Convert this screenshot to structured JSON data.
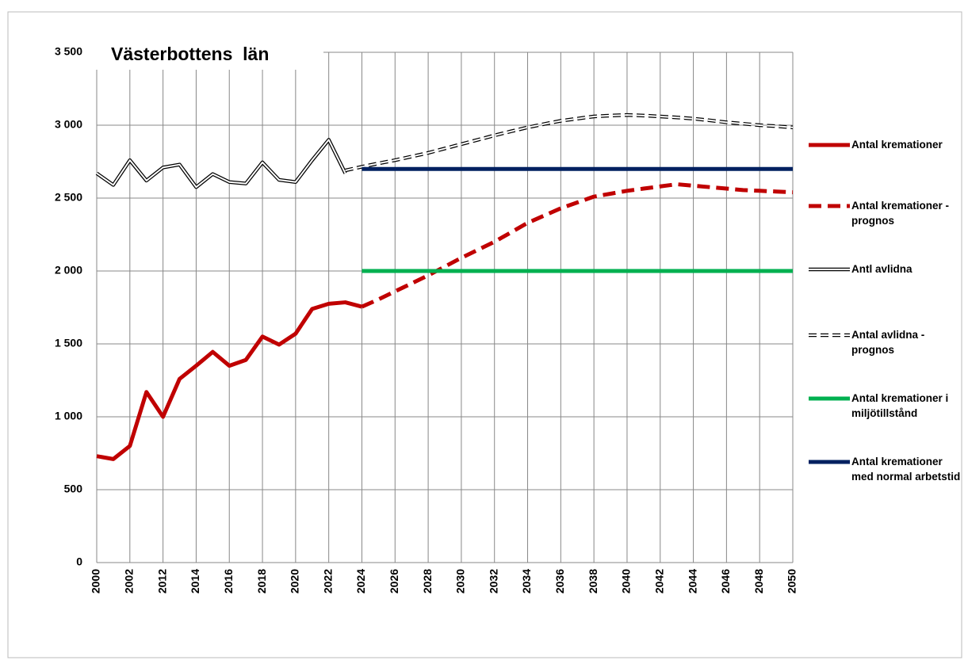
{
  "chart_data": {
    "type": "line",
    "title": "Västerbottens  län",
    "categories": [
      2000,
      null,
      2002,
      null,
      2012,
      null,
      2014,
      null,
      2016,
      null,
      2018,
      null,
      2020,
      null,
      2022,
      null,
      2024,
      null,
      2026,
      null,
      2028,
      null,
      2030,
      null,
      2032,
      null,
      2034,
      null,
      2036,
      null,
      2038,
      null,
      2040,
      null,
      2042,
      null,
      2044,
      null,
      2046,
      null,
      2048,
      null,
      2050
    ],
    "ylim": [
      0,
      3500
    ],
    "yticks": [
      {
        "value": 0,
        "label": "0"
      },
      {
        "value": 500,
        "label": "500"
      },
      {
        "value": 1000,
        "label": "1 000"
      },
      {
        "value": 1500,
        "label": "1 500"
      },
      {
        "value": 2000,
        "label": "2 000"
      },
      {
        "value": 2500,
        "label": "2 500"
      },
      {
        "value": 3000,
        "label": "3 000"
      },
      {
        "value": 3500,
        "label": "3 500"
      }
    ],
    "grid": true,
    "legend": "right",
    "series": [
      {
        "name": "Antal kremationer",
        "color": "#c00000",
        "style": "solid",
        "values": [
          730,
          710,
          800,
          1170,
          1000,
          1260,
          1350,
          1445,
          1350,
          1390,
          1550,
          1495,
          1570,
          1740,
          1775,
          1785,
          1755,
          null,
          null,
          null,
          null,
          null,
          null,
          null,
          null,
          null,
          null,
          null,
          null,
          null,
          null,
          null,
          null,
          null,
          null,
          null,
          null,
          null,
          null,
          null,
          null,
          null,
          null
        ]
      },
      {
        "name": "Antal kremationer - prognos",
        "color": "#c00000",
        "style": "dashed",
        "values": [
          null,
          null,
          null,
          null,
          null,
          null,
          null,
          null,
          null,
          null,
          null,
          null,
          null,
          null,
          null,
          null,
          1755,
          1805,
          1860,
          1915,
          1970,
          2030,
          2090,
          2145,
          2200,
          2265,
          2330,
          2380,
          2430,
          2470,
          2510,
          2530,
          2550,
          2565,
          2580,
          2595,
          2585,
          2575,
          2565,
          2555,
          2550,
          2545,
          2540
        ]
      },
      {
        "name": "Antl avlidna",
        "color": "#000000",
        "style": "double",
        "values": [
          2670,
          2590,
          2760,
          2620,
          2710,
          2730,
          2575,
          2665,
          2610,
          2600,
          2745,
          2625,
          2610,
          2760,
          2900,
          2670,
          null,
          null,
          null,
          null,
          null,
          null,
          null,
          null,
          null,
          null,
          null,
          null,
          null,
          null,
          null,
          null,
          null,
          null,
          null,
          null,
          null,
          null,
          null,
          null,
          null,
          null,
          null
        ]
      },
      {
        "name": "Antal avlidna - prognos",
        "color": "#000000",
        "style": "double-dashed",
        "values": [
          null,
          null,
          null,
          null,
          null,
          null,
          null,
          null,
          null,
          null,
          null,
          null,
          null,
          null,
          null,
          2690,
          2715,
          2738,
          2760,
          2785,
          2810,
          2840,
          2870,
          2900,
          2930,
          2958,
          2985,
          3008,
          3030,
          3045,
          3060,
          3066,
          3070,
          3066,
          3060,
          3053,
          3045,
          3033,
          3020,
          3010,
          3000,
          2993,
          2985
        ]
      },
      {
        "name": "Antal kremationer i miljötillstånd",
        "color": "#00b050",
        "style": "solid",
        "values": [
          null,
          null,
          null,
          null,
          null,
          null,
          null,
          null,
          null,
          null,
          null,
          null,
          null,
          null,
          null,
          null,
          2000,
          2000,
          2000,
          2000,
          2000,
          2000,
          2000,
          2000,
          2000,
          2000,
          2000,
          2000,
          2000,
          2000,
          2000,
          2000,
          2000,
          2000,
          2000,
          2000,
          2000,
          2000,
          2000,
          2000,
          2000,
          2000,
          2000
        ]
      },
      {
        "name": "Antal kremationer med normal arbetstid",
        "color": "#002060",
        "style": "solid",
        "values": [
          null,
          null,
          null,
          null,
          null,
          null,
          null,
          null,
          null,
          null,
          null,
          null,
          null,
          null,
          null,
          null,
          2700,
          2700,
          2700,
          2700,
          2700,
          2700,
          2700,
          2700,
          2700,
          2700,
          2700,
          2700,
          2700,
          2700,
          2700,
          2700,
          2700,
          2700,
          2700,
          2700,
          2700,
          2700,
          2700,
          2700,
          2700,
          2700,
          2700
        ]
      }
    ]
  }
}
